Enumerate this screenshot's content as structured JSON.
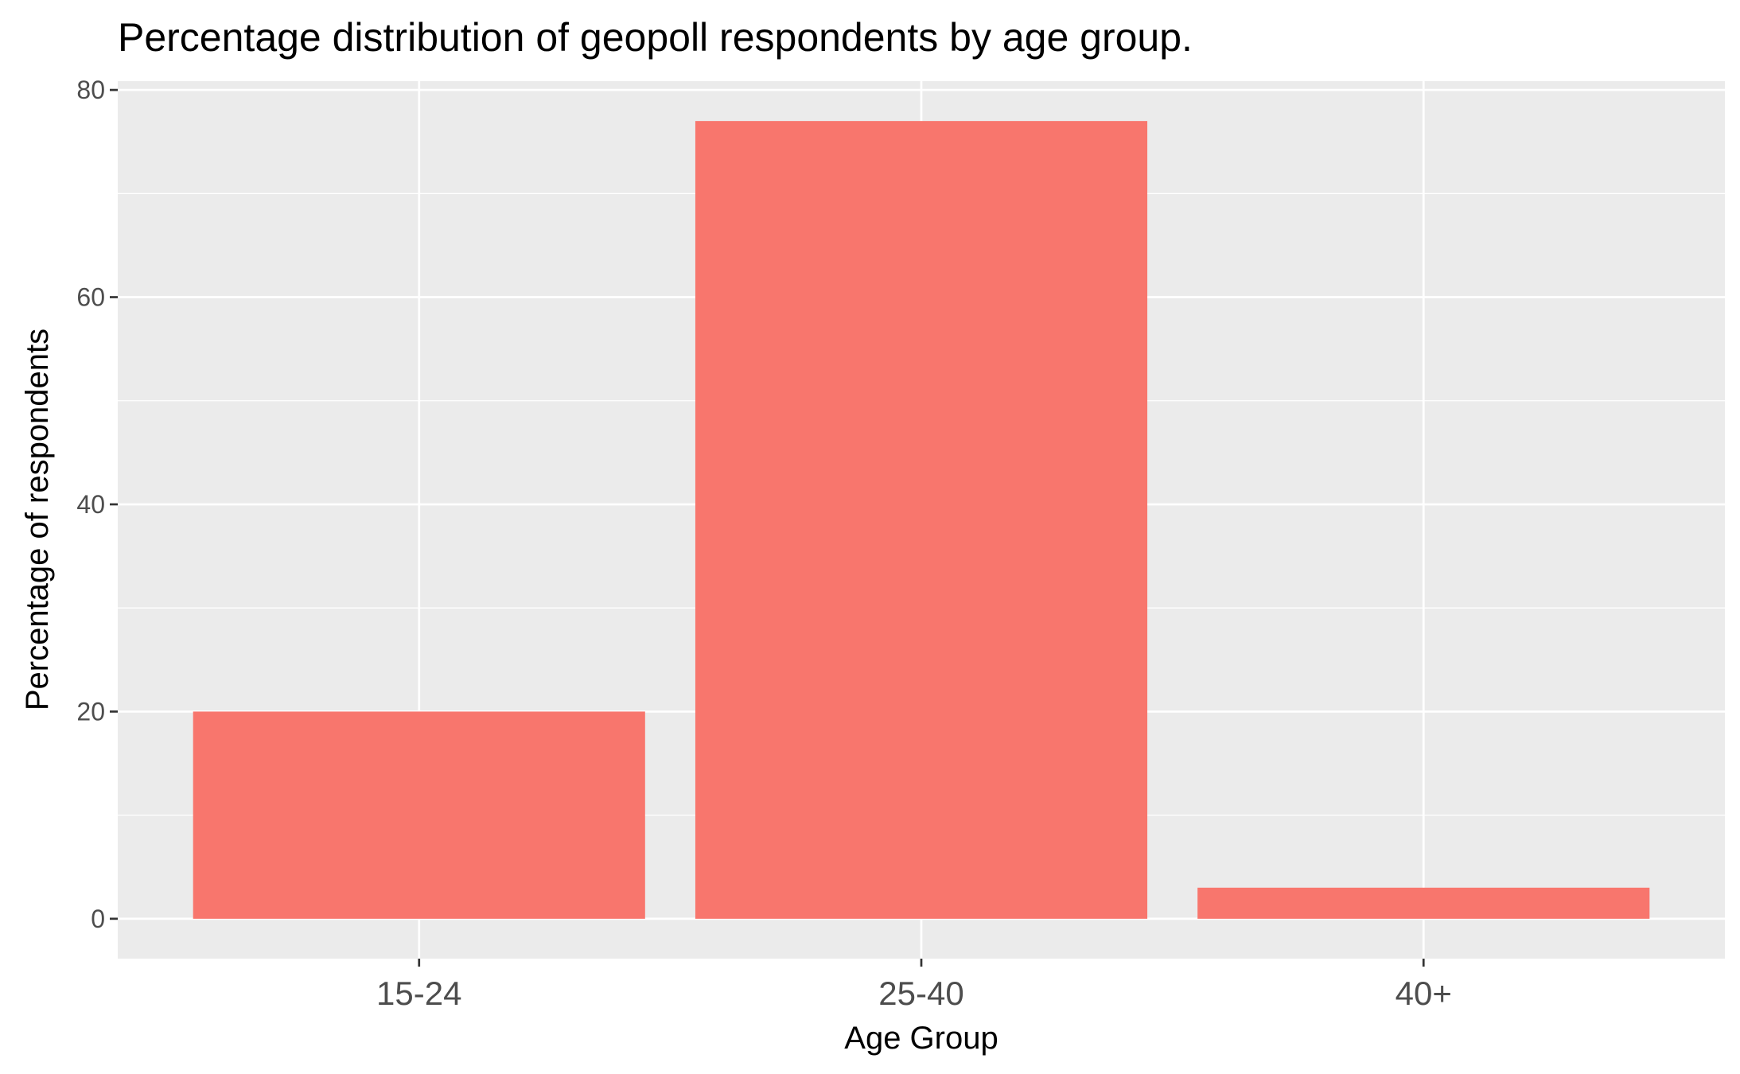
{
  "chart_data": {
    "type": "bar",
    "title": "Percentage distribution of geopoll respondents by age group.",
    "xlabel": "Age Group",
    "ylabel": "Percentage of respondents",
    "categories": [
      "15-24",
      "25-40",
      "40+"
    ],
    "values": [
      20,
      77,
      3
    ],
    "ylim": [
      -3.85,
      80.85
    ],
    "yticks": [
      0,
      20,
      40,
      60,
      80
    ],
    "grid": true,
    "legend": "none",
    "colors": {
      "bar": "#F8766D",
      "panel": "#EBEBEB",
      "grid": "#FFFFFF",
      "tick": "#333333"
    }
  }
}
